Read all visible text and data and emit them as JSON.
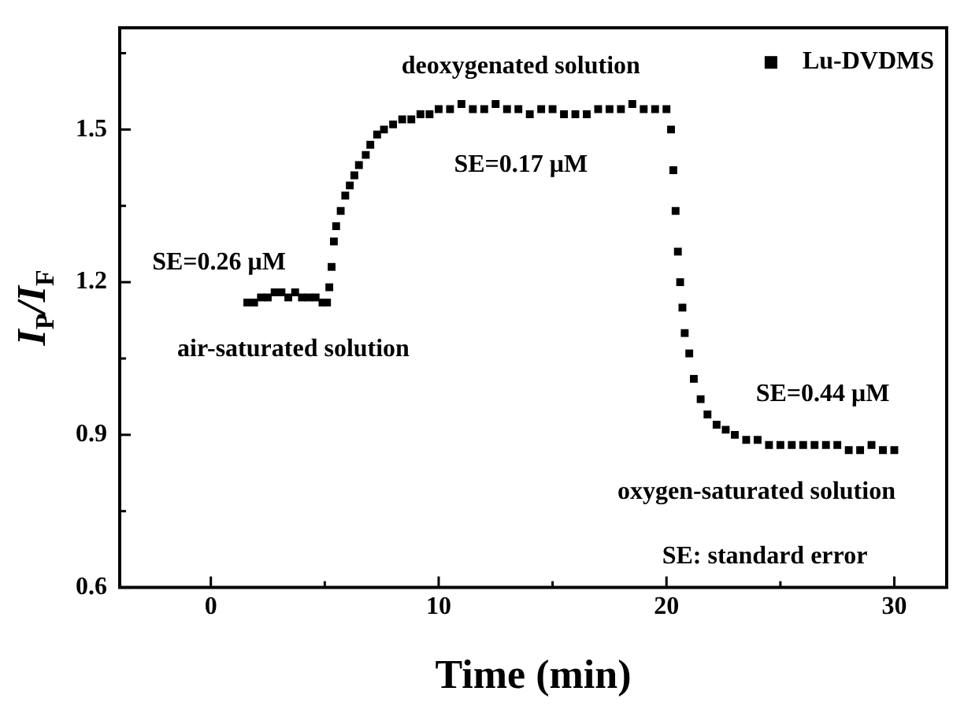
{
  "chart_data": {
    "type": "scatter",
    "xlabel": "Time (min)",
    "ylabel": "I$_{P}$/I$_{F}$",
    "xlim": [
      -4,
      32.3
    ],
    "ylim": [
      0.6,
      1.7
    ],
    "xticks": [
      0,
      {
        "value": 5,
        "label": null
      },
      10,
      {
        "value": 15,
        "label": null
      },
      20,
      {
        "value": 25,
        "label": null
      },
      30
    ],
    "yticks": [
      0.6,
      {
        "value": 0.75,
        "label": null
      },
      0.9,
      {
        "value": 1.05,
        "label": null
      },
      1.2,
      {
        "value": 1.35,
        "label": null
      },
      1.5,
      {
        "value": 1.65,
        "label": null
      }
    ],
    "grid": false,
    "legend": "top right",
    "marker": "square",
    "series": [
      {
        "name": "Lu-DVDMS",
        "color": "#000000",
        "x": [
          1.6,
          1.9,
          2.2,
          2.5,
          2.8,
          3.1,
          3.4,
          3.7,
          4.0,
          4.3,
          4.6,
          4.9,
          5.1,
          5.2,
          5.3,
          5.4,
          5.5,
          5.7,
          5.9,
          6.1,
          6.3,
          6.5,
          6.8,
          7.0,
          7.3,
          7.6,
          8.0,
          8.4,
          8.8,
          9.2,
          9.6,
          10.0,
          10.5,
          11.0,
          11.5,
          12.0,
          12.5,
          13.0,
          13.5,
          14.0,
          14.5,
          15.0,
          15.5,
          16.0,
          16.5,
          17.0,
          17.5,
          18.0,
          18.5,
          19.0,
          19.5,
          20.0,
          20.2,
          20.3,
          20.4,
          20.5,
          20.6,
          20.7,
          20.8,
          21.0,
          21.2,
          21.5,
          21.8,
          22.2,
          22.6,
          23.0,
          23.5,
          24.0,
          24.5,
          25.0,
          25.5,
          26.0,
          26.5,
          27.0,
          27.5,
          28.0,
          28.5,
          29.0,
          29.5,
          30.0
        ],
        "values": [
          1.16,
          1.16,
          1.17,
          1.17,
          1.18,
          1.18,
          1.17,
          1.18,
          1.17,
          1.17,
          1.17,
          1.16,
          1.16,
          1.19,
          1.23,
          1.28,
          1.31,
          1.34,
          1.37,
          1.39,
          1.41,
          1.43,
          1.45,
          1.47,
          1.49,
          1.5,
          1.51,
          1.52,
          1.52,
          1.53,
          1.53,
          1.54,
          1.54,
          1.55,
          1.54,
          1.54,
          1.55,
          1.54,
          1.54,
          1.53,
          1.54,
          1.54,
          1.53,
          1.53,
          1.53,
          1.54,
          1.54,
          1.54,
          1.55,
          1.54,
          1.54,
          1.54,
          1.5,
          1.42,
          1.34,
          1.26,
          1.2,
          1.15,
          1.1,
          1.06,
          1.01,
          0.97,
          0.94,
          0.92,
          0.91,
          0.9,
          0.89,
          0.89,
          0.88,
          0.88,
          0.88,
          0.88,
          0.88,
          0.88,
          0.88,
          0.87,
          0.87,
          0.88,
          0.87,
          0.87
        ]
      }
    ],
    "annotations": [
      "deoxygenated solution",
      "SE=0.17 μM",
      "SE=0.26 μM",
      "air-saturated solution",
      "SE=0.44 μM",
      "oxygen-saturated solution",
      "SE: standard error"
    ]
  }
}
